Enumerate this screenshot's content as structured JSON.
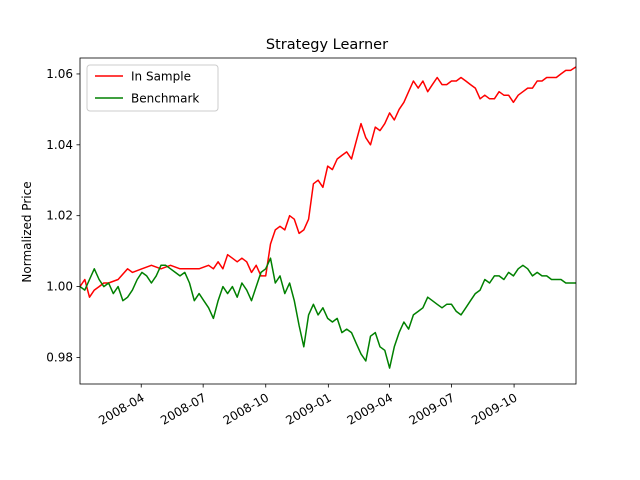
{
  "chart_data": {
    "type": "line",
    "title": "Strategy Learner",
    "xlabel": "",
    "ylabel": "Normalized Price",
    "xlim": [
      "2008-01-02",
      "2009-12-31"
    ],
    "ylim": [
      0.9725,
      1.0645
    ],
    "x_ticks": [
      "2008-04-01",
      "2008-07-01",
      "2008-10-01",
      "2009-01-01",
      "2009-04-01",
      "2009-07-01",
      "2009-10-01"
    ],
    "x_tick_labels": [
      "2008-04",
      "2008-07",
      "2008-10",
      "2009-01",
      "2009-04",
      "2009-07",
      "2009-10"
    ],
    "y_ticks": [
      0.98,
      1.0,
      1.02,
      1.04,
      1.06
    ],
    "y_tick_labels": [
      "0.98",
      "1.00",
      "1.02",
      "1.04",
      "1.06"
    ],
    "grid": false,
    "legend_position": "top-left",
    "series": [
      {
        "name": "In Sample",
        "color": "#ff0000",
        "points": [
          [
            "2008-01-02",
            1.0
          ],
          [
            "2008-01-09",
            1.002
          ],
          [
            "2008-01-16",
            0.997
          ],
          [
            "2008-01-23",
            0.999
          ],
          [
            "2008-01-30",
            1.0
          ],
          [
            "2008-02-06",
            1.001
          ],
          [
            "2008-02-13",
            1.001
          ],
          [
            "2008-02-27",
            1.002
          ],
          [
            "2008-03-12",
            1.005
          ],
          [
            "2008-03-19",
            1.004
          ],
          [
            "2008-04-02",
            1.005
          ],
          [
            "2008-04-16",
            1.006
          ],
          [
            "2008-04-30",
            1.005
          ],
          [
            "2008-05-14",
            1.006
          ],
          [
            "2008-05-28",
            1.005
          ],
          [
            "2008-06-11",
            1.005
          ],
          [
            "2008-06-25",
            1.005
          ],
          [
            "2008-07-09",
            1.006
          ],
          [
            "2008-07-16",
            1.005
          ],
          [
            "2008-07-23",
            1.007
          ],
          [
            "2008-07-30",
            1.005
          ],
          [
            "2008-08-06",
            1.009
          ],
          [
            "2008-08-13",
            1.008
          ],
          [
            "2008-08-20",
            1.007
          ],
          [
            "2008-08-27",
            1.008
          ],
          [
            "2008-09-03",
            1.007
          ],
          [
            "2008-09-10",
            1.004
          ],
          [
            "2008-09-17",
            1.006
          ],
          [
            "2008-09-24",
            1.003
          ],
          [
            "2008-10-01",
            1.003
          ],
          [
            "2008-10-08",
            1.012
          ],
          [
            "2008-10-15",
            1.016
          ],
          [
            "2008-10-22",
            1.017
          ],
          [
            "2008-10-29",
            1.016
          ],
          [
            "2008-11-05",
            1.02
          ],
          [
            "2008-11-12",
            1.019
          ],
          [
            "2008-11-19",
            1.015
          ],
          [
            "2008-11-26",
            1.016
          ],
          [
            "2008-12-03",
            1.019
          ],
          [
            "2008-12-10",
            1.029
          ],
          [
            "2008-12-17",
            1.03
          ],
          [
            "2008-12-24",
            1.028
          ],
          [
            "2008-12-31",
            1.034
          ],
          [
            "2009-01-07",
            1.033
          ],
          [
            "2009-01-14",
            1.036
          ],
          [
            "2009-01-21",
            1.037
          ],
          [
            "2009-01-28",
            1.038
          ],
          [
            "2009-02-04",
            1.036
          ],
          [
            "2009-02-11",
            1.041
          ],
          [
            "2009-02-18",
            1.046
          ],
          [
            "2009-02-25",
            1.042
          ],
          [
            "2009-03-04",
            1.04
          ],
          [
            "2009-03-11",
            1.045
          ],
          [
            "2009-03-18",
            1.044
          ],
          [
            "2009-03-25",
            1.046
          ],
          [
            "2009-04-01",
            1.049
          ],
          [
            "2009-04-08",
            1.047
          ],
          [
            "2009-04-15",
            1.05
          ],
          [
            "2009-04-22",
            1.052
          ],
          [
            "2009-04-29",
            1.055
          ],
          [
            "2009-05-06",
            1.058
          ],
          [
            "2009-05-13",
            1.056
          ],
          [
            "2009-05-20",
            1.058
          ],
          [
            "2009-05-27",
            1.055
          ],
          [
            "2009-06-03",
            1.057
          ],
          [
            "2009-06-10",
            1.059
          ],
          [
            "2009-06-17",
            1.057
          ],
          [
            "2009-06-24",
            1.057
          ],
          [
            "2009-07-01",
            1.058
          ],
          [
            "2009-07-08",
            1.058
          ],
          [
            "2009-07-15",
            1.059
          ],
          [
            "2009-07-22",
            1.058
          ],
          [
            "2009-07-29",
            1.057
          ],
          [
            "2009-08-05",
            1.056
          ],
          [
            "2009-08-12",
            1.053
          ],
          [
            "2009-08-19",
            1.054
          ],
          [
            "2009-08-26",
            1.053
          ],
          [
            "2009-09-02",
            1.053
          ],
          [
            "2009-09-09",
            1.055
          ],
          [
            "2009-09-16",
            1.054
          ],
          [
            "2009-09-23",
            1.054
          ],
          [
            "2009-09-30",
            1.052
          ],
          [
            "2009-10-07",
            1.054
          ],
          [
            "2009-10-14",
            1.055
          ],
          [
            "2009-10-21",
            1.056
          ],
          [
            "2009-10-28",
            1.056
          ],
          [
            "2009-11-04",
            1.058
          ],
          [
            "2009-11-11",
            1.058
          ],
          [
            "2009-11-18",
            1.059
          ],
          [
            "2009-11-25",
            1.059
          ],
          [
            "2009-12-02",
            1.059
          ],
          [
            "2009-12-09",
            1.06
          ],
          [
            "2009-12-16",
            1.061
          ],
          [
            "2009-12-23",
            1.061
          ],
          [
            "2009-12-31",
            1.062
          ]
        ]
      },
      {
        "name": "Benchmark",
        "color": "#008000",
        "points": [
          [
            "2008-01-02",
            1.0
          ],
          [
            "2008-01-09",
            0.999
          ],
          [
            "2008-01-16",
            1.002
          ],
          [
            "2008-01-23",
            1.005
          ],
          [
            "2008-01-30",
            1.002
          ],
          [
            "2008-02-06",
            1.0
          ],
          [
            "2008-02-13",
            1.001
          ],
          [
            "2008-02-20",
            0.998
          ],
          [
            "2008-02-27",
            1.0
          ],
          [
            "2008-03-05",
            0.996
          ],
          [
            "2008-03-12",
            0.997
          ],
          [
            "2008-03-19",
            0.999
          ],
          [
            "2008-03-26",
            1.002
          ],
          [
            "2008-04-02",
            1.004
          ],
          [
            "2008-04-09",
            1.003
          ],
          [
            "2008-04-16",
            1.001
          ],
          [
            "2008-04-23",
            1.003
          ],
          [
            "2008-04-30",
            1.006
          ],
          [
            "2008-05-07",
            1.006
          ],
          [
            "2008-05-14",
            1.005
          ],
          [
            "2008-05-21",
            1.004
          ],
          [
            "2008-05-28",
            1.003
          ],
          [
            "2008-06-04",
            1.004
          ],
          [
            "2008-06-11",
            1.001
          ],
          [
            "2008-06-18",
            0.996
          ],
          [
            "2008-06-25",
            0.998
          ],
          [
            "2008-07-02",
            0.996
          ],
          [
            "2008-07-09",
            0.994
          ],
          [
            "2008-07-16",
            0.991
          ],
          [
            "2008-07-23",
            0.996
          ],
          [
            "2008-07-30",
            1.0
          ],
          [
            "2008-08-06",
            0.998
          ],
          [
            "2008-08-13",
            1.0
          ],
          [
            "2008-08-20",
            0.997
          ],
          [
            "2008-08-27",
            1.001
          ],
          [
            "2008-09-03",
            0.999
          ],
          [
            "2008-09-10",
            0.996
          ],
          [
            "2008-09-17",
            1.0
          ],
          [
            "2008-09-24",
            1.004
          ],
          [
            "2008-10-01",
            1.005
          ],
          [
            "2008-10-08",
            1.008
          ],
          [
            "2008-10-15",
            1.001
          ],
          [
            "2008-10-22",
            1.003
          ],
          [
            "2008-10-29",
            0.998
          ],
          [
            "2008-11-05",
            1.001
          ],
          [
            "2008-11-12",
            0.996
          ],
          [
            "2008-11-19",
            0.989
          ],
          [
            "2008-11-26",
            0.983
          ],
          [
            "2008-12-03",
            0.992
          ],
          [
            "2008-12-10",
            0.995
          ],
          [
            "2008-12-17",
            0.992
          ],
          [
            "2008-12-24",
            0.994
          ],
          [
            "2008-12-31",
            0.991
          ],
          [
            "2009-01-07",
            0.99
          ],
          [
            "2009-01-14",
            0.991
          ],
          [
            "2009-01-21",
            0.987
          ],
          [
            "2009-01-28",
            0.988
          ],
          [
            "2009-02-04",
            0.987
          ],
          [
            "2009-02-11",
            0.984
          ],
          [
            "2009-02-18",
            0.981
          ],
          [
            "2009-02-25",
            0.979
          ],
          [
            "2009-03-04",
            0.986
          ],
          [
            "2009-03-11",
            0.987
          ],
          [
            "2009-03-18",
            0.983
          ],
          [
            "2009-03-25",
            0.982
          ],
          [
            "2009-04-01",
            0.977
          ],
          [
            "2009-04-08",
            0.983
          ],
          [
            "2009-04-15",
            0.987
          ],
          [
            "2009-04-22",
            0.99
          ],
          [
            "2009-04-29",
            0.988
          ],
          [
            "2009-05-06",
            0.992
          ],
          [
            "2009-05-13",
            0.993
          ],
          [
            "2009-05-20",
            0.994
          ],
          [
            "2009-05-27",
            0.997
          ],
          [
            "2009-06-03",
            0.996
          ],
          [
            "2009-06-10",
            0.995
          ],
          [
            "2009-06-17",
            0.994
          ],
          [
            "2009-06-24",
            0.995
          ],
          [
            "2009-07-01",
            0.995
          ],
          [
            "2009-07-08",
            0.993
          ],
          [
            "2009-07-15",
            0.992
          ],
          [
            "2009-07-22",
            0.994
          ],
          [
            "2009-07-29",
            0.996
          ],
          [
            "2009-08-05",
            0.998
          ],
          [
            "2009-08-12",
            0.999
          ],
          [
            "2009-08-19",
            1.002
          ],
          [
            "2009-08-26",
            1.001
          ],
          [
            "2009-09-02",
            1.003
          ],
          [
            "2009-09-09",
            1.003
          ],
          [
            "2009-09-16",
            1.002
          ],
          [
            "2009-09-23",
            1.004
          ],
          [
            "2009-09-30",
            1.003
          ],
          [
            "2009-10-07",
            1.005
          ],
          [
            "2009-10-14",
            1.006
          ],
          [
            "2009-10-21",
            1.005
          ],
          [
            "2009-10-28",
            1.003
          ],
          [
            "2009-11-04",
            1.004
          ],
          [
            "2009-11-11",
            1.003
          ],
          [
            "2009-11-18",
            1.003
          ],
          [
            "2009-11-25",
            1.002
          ],
          [
            "2009-12-02",
            1.002
          ],
          [
            "2009-12-09",
            1.002
          ],
          [
            "2009-12-16",
            1.001
          ],
          [
            "2009-12-23",
            1.001
          ],
          [
            "2009-12-31",
            1.001
          ]
        ]
      }
    ]
  }
}
